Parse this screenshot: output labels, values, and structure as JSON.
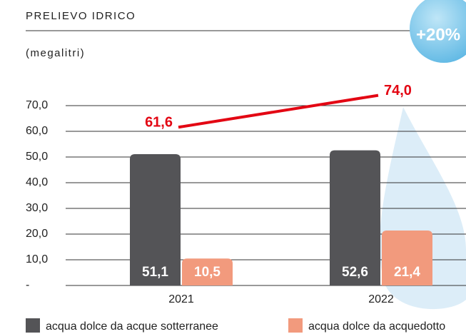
{
  "chart_data": {
    "type": "bar",
    "title": "PRELIEVO IDRICO",
    "subtitle": "(megalitri)",
    "badge": "+20%",
    "categories": [
      "2021",
      "2022"
    ],
    "series": [
      {
        "name": "acqua dolce da acque sotterranee",
        "color": "#545457",
        "values": [
          51.1,
          52.6
        ],
        "value_labels": [
          "51,1",
          "52,6"
        ]
      },
      {
        "name": "acqua dolce da acquedotto",
        "color": "#f29a7d",
        "values": [
          10.5,
          21.4
        ],
        "value_labels": [
          "10,5",
          "21,4"
        ]
      }
    ],
    "totals": [
      61.6,
      74.0
    ],
    "total_labels": [
      "61,6",
      "74,0"
    ],
    "totals_color": "#e30613",
    "ylim": [
      0,
      70
    ],
    "yticks": [
      {
        "value": 0,
        "label": "-"
      },
      {
        "value": 10,
        "label": "10,0"
      },
      {
        "value": 20,
        "label": "20,0"
      },
      {
        "value": 30,
        "label": "30,0"
      },
      {
        "value": 40,
        "label": "40,0"
      },
      {
        "value": 50,
        "label": "50,0"
      },
      {
        "value": 60,
        "label": "60,0"
      },
      {
        "value": 70,
        "label": "70,0"
      }
    ],
    "grid": true
  }
}
